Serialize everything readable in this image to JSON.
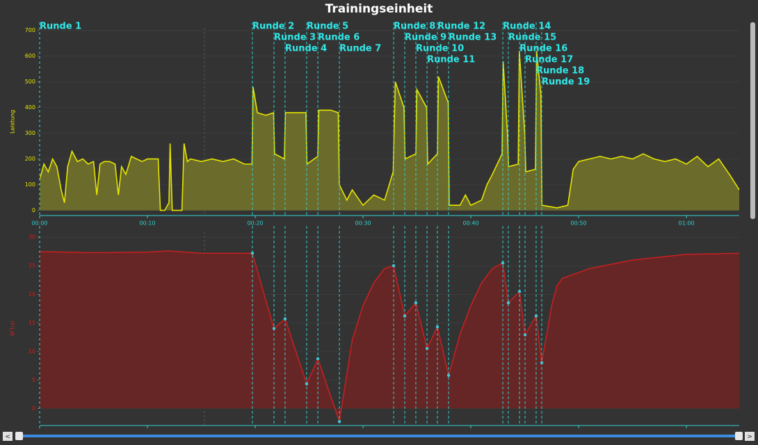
{
  "title": "Trainingseinheit",
  "controls": {
    "prev": "<",
    "next": ">"
  },
  "chart_data": [
    {
      "type": "area",
      "ylabel": "Leistung",
      "color": "#e6e600",
      "fill": "#6b6b2c",
      "grid": true,
      "xlim": [
        0,
        64.9
      ],
      "ylim": [
        -20,
        710
      ],
      "xticks": [
        {
          "value": 0,
          "label": "00:00"
        },
        {
          "value": 10,
          "label": "00:10"
        },
        {
          "value": 20,
          "label": "00:20"
        },
        {
          "value": 30,
          "label": "00:30"
        },
        {
          "value": 40,
          "label": "00:40"
        },
        {
          "value": 50,
          "label": "00:50"
        },
        {
          "value": 60,
          "label": "01:00"
        }
      ],
      "yticks": [
        0,
        100,
        200,
        300,
        400,
        500,
        600,
        700
      ],
      "laps": [
        {
          "x": 0,
          "label": "Runde 1"
        },
        {
          "x": 19.74,
          "label": "Runde 2"
        },
        {
          "x": 21.74,
          "label": "Runde 3"
        },
        {
          "x": 22.77,
          "label": "Runde 4"
        },
        {
          "x": 24.77,
          "label": "Runde 5"
        },
        {
          "x": 25.81,
          "label": "Runde 6"
        },
        {
          "x": 27.81,
          "label": "Runde 7"
        },
        {
          "x": 32.84,
          "label": "Runde 8"
        },
        {
          "x": 33.87,
          "label": "Runde 9"
        },
        {
          "x": 34.9,
          "label": "Runde 10"
        },
        {
          "x": 35.94,
          "label": "Runde 11"
        },
        {
          "x": 36.9,
          "label": "Runde 12"
        },
        {
          "x": 37.94,
          "label": "Runde 13"
        },
        {
          "x": 42.97,
          "label": "Runde 14"
        },
        {
          "x": 43.48,
          "label": "Runde 15"
        },
        {
          "x": 44.52,
          "label": "Runde 16"
        },
        {
          "x": 45.03,
          "label": "Runde 17"
        },
        {
          "x": 46.06,
          "label": "Runde 18"
        },
        {
          "x": 46.58,
          "label": "Runde 19"
        }
      ],
      "x": [
        0,
        0.4,
        0.8,
        1.2,
        1.6,
        2.0,
        2.3,
        2.6,
        3,
        3.5,
        4,
        4.5,
        5,
        5.3,
        5.6,
        6,
        6.5,
        7,
        7.3,
        7.6,
        8,
        8.5,
        9,
        9.5,
        10,
        10.5,
        11,
        11.2,
        11.6,
        12,
        12.1,
        12.3,
        13.2,
        13.4,
        13.7,
        14,
        15,
        16,
        17,
        18,
        19,
        19.7,
        19.8,
        20.2,
        21,
        21.7,
        21.8,
        22.7,
        22.8,
        24,
        24.7,
        24.8,
        25.8,
        25.9,
        27,
        27.7,
        27.8,
        28.5,
        29,
        30,
        31,
        32,
        32.8,
        33,
        33.8,
        33.9,
        34.9,
        35,
        35.9,
        36,
        36.9,
        37,
        37.9,
        38,
        39,
        39.5,
        40,
        41,
        41.5,
        42,
        42.9,
        43,
        43.4,
        43.5,
        44.4,
        44.5,
        45,
        45.1,
        46,
        46.1,
        46.5,
        46.6,
        48,
        49,
        49.5,
        50,
        51,
        52,
        53,
        54,
        55,
        56,
        57,
        58,
        59,
        60,
        61,
        62,
        63,
        64,
        64.9
      ],
      "values": [
        120,
        180,
        150,
        200,
        170,
        80,
        30,
        170,
        230,
        190,
        200,
        180,
        190,
        60,
        180,
        190,
        190,
        180,
        60,
        170,
        140,
        210,
        200,
        190,
        200,
        200,
        200,
        0,
        0,
        30,
        260,
        0,
        0,
        260,
        190,
        200,
        190,
        200,
        190,
        200,
        180,
        180,
        480,
        380,
        370,
        380,
        220,
        200,
        380,
        380,
        380,
        180,
        210,
        390,
        390,
        380,
        100,
        40,
        80,
        20,
        60,
        40,
        150,
        500,
        400,
        200,
        220,
        470,
        400,
        180,
        220,
        520,
        420,
        20,
        20,
        60,
        20,
        40,
        100,
        140,
        220,
        580,
        300,
        170,
        180,
        620,
        300,
        150,
        160,
        620,
        450,
        20,
        10,
        20,
        160,
        190,
        200,
        210,
        200,
        210,
        200,
        220,
        200,
        190,
        200,
        180,
        210,
        170,
        200,
        140,
        80
      ]
    },
    {
      "type": "area",
      "ylabel": "W'bal",
      "color": "#c82020",
      "fill": "#672626",
      "grid": true,
      "xlim": [
        0,
        64.9
      ],
      "ylim": [
        -3,
        31
      ],
      "yticks": [
        0,
        5,
        10,
        15,
        20,
        25,
        30
      ],
      "x": [
        0,
        5,
        10,
        12,
        15,
        19.74,
        21.74,
        22.77,
        24.77,
        25.81,
        27.81,
        29,
        30,
        31,
        32,
        32.84,
        33.87,
        34.9,
        35.94,
        36.9,
        37.94,
        39,
        40,
        41,
        42,
        42.97,
        43.48,
        44.52,
        45.03,
        46.06,
        46.58,
        47.5,
        48,
        48.5,
        51,
        55,
        60,
        64.9
      ],
      "values": [
        27.5,
        27.3,
        27.4,
        27.6,
        27.2,
        27.2,
        14,
        15.7,
        4.3,
        8.7,
        -2.3,
        12,
        18,
        22,
        24.5,
        25,
        16.2,
        18.5,
        10.5,
        14.3,
        5.8,
        13,
        18,
        22,
        24.5,
        25.5,
        18.5,
        20.5,
        12.9,
        16.2,
        8,
        18,
        21.5,
        22.8,
        24.5,
        26,
        27,
        27.2
      ]
    }
  ]
}
